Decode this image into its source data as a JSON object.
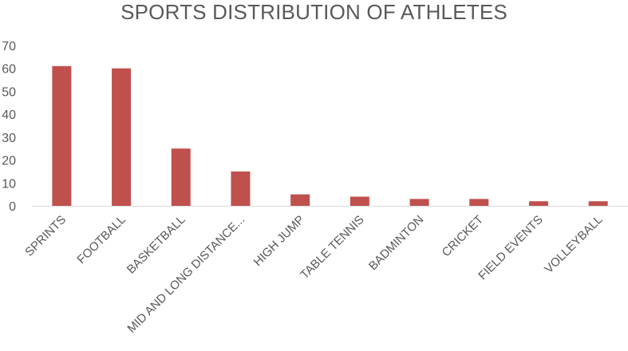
{
  "chart_data": {
    "type": "bar",
    "title": "SPORTS DISTRIBUTION OF ATHLETES",
    "categories": [
      "SPRINTS",
      "FOOTBALL",
      "BASKETBALL",
      "MID AND LONG DISTANCE...",
      "HIGH JUMP",
      "TABLE TENNIS",
      "BADMINTON",
      "CRICKET",
      "FIELD EVENTS",
      "VOLLEYBALL"
    ],
    "values": [
      61,
      60,
      25,
      15,
      5,
      4,
      3,
      3,
      2,
      2
    ],
    "ylim": [
      0,
      70
    ],
    "yticks": [
      0,
      10,
      20,
      30,
      40,
      50,
      60,
      70
    ],
    "grid": false,
    "legend": "none",
    "bar_color": "#c0504d",
    "text_color": "#595959",
    "axis_color": "#d9d9d9"
  }
}
